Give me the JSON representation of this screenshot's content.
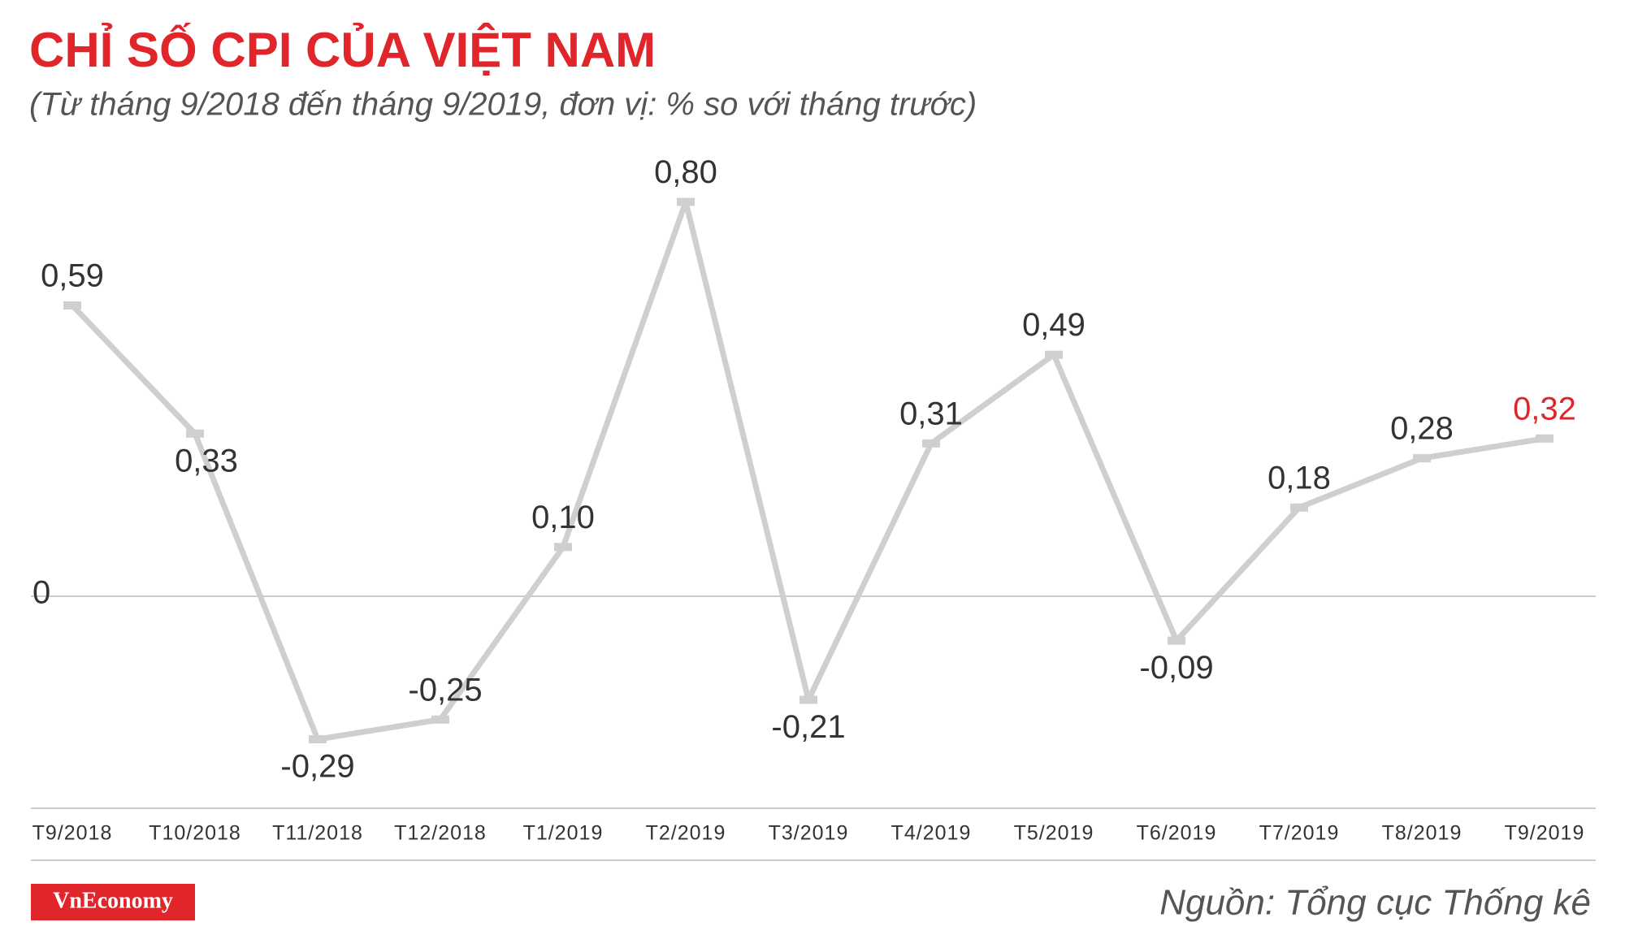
{
  "header": {
    "logo": "VnEconomy",
    "source": "Nguồn: Tổng cục Thống kê"
  },
  "chart_data": {
    "type": "line",
    "title": "CHỈ SỐ CPI CỦA VIỆT NAM",
    "subtitle": "(Từ tháng 9/2018 đến tháng 9/2019, đơn vị: % so với tháng trước)",
    "categories": [
      "T9/2018",
      "T10/2018",
      "T11/2018",
      "T12/2018",
      "T1/2019",
      "T2/2019",
      "T3/2019",
      "T4/2019",
      "T5/2019",
      "T6/2019",
      "T7/2019",
      "T8/2019",
      "T9/2019"
    ],
    "values": [
      0.59,
      0.33,
      -0.29,
      -0.25,
      0.1,
      0.8,
      -0.21,
      0.31,
      0.49,
      -0.09,
      0.18,
      0.28,
      0.32
    ],
    "value_labels": [
      "0,59",
      "0,33",
      "-0,29",
      "-0,25",
      "0,10",
      "0,80",
      "-0,21",
      "0,31",
      "0,49",
      "-0,09",
      "0,18",
      "0,28",
      "0,32"
    ],
    "value_label_colors": [
      "#333333",
      "#333333",
      "#333333",
      "#333333",
      "#333333",
      "#333333",
      "#333333",
      "#333333",
      "#333333",
      "#333333",
      "#333333",
      "#333333",
      "#e0252b"
    ],
    "color": "#cfcfcf",
    "ylim": [
      -0.43,
      0.88
    ],
    "yticks": [
      0
    ],
    "grid": true
  }
}
